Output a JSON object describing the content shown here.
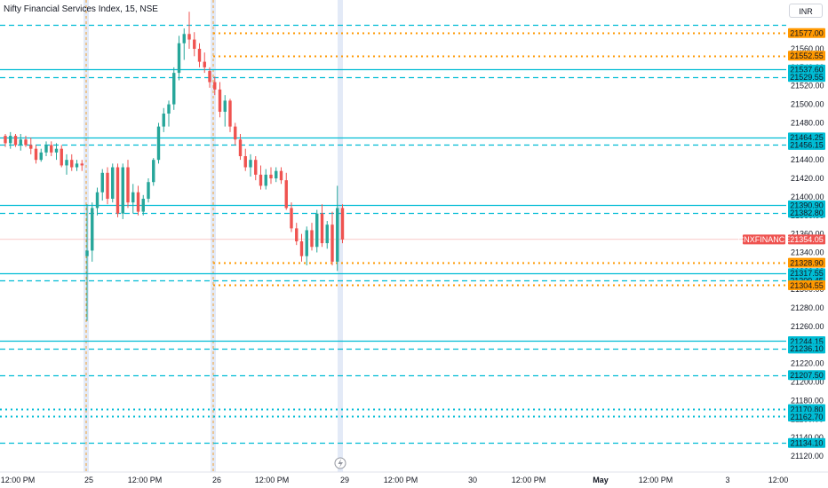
{
  "header": {
    "title": "Nifty Financial Services Index, 15, NSE",
    "currency": "INR"
  },
  "colors": {
    "up": "#26a69a",
    "down": "#ef5350",
    "cyan_line": "#00bcd4",
    "orange_line": "#ff9800",
    "current_price": "#ef5350",
    "session_band": "#e3eaf7",
    "session_line": "#2962ff"
  },
  "chart_data": {
    "type": "candlestick",
    "symbol": "CNXFINANCE",
    "current_price": 21354.05,
    "price_axis": {
      "min": 21120,
      "max": 21580,
      "ticks": [
        21560,
        21540,
        21520,
        21500,
        21480,
        21460,
        21440,
        21420,
        21400,
        21380,
        21360,
        21340,
        21320,
        21300,
        21280,
        21260,
        21240,
        21220,
        21200,
        21180,
        21160,
        21140,
        21120
      ]
    },
    "time_axis": {
      "labels": [
        "12:00 PM",
        "25",
        "12:00 PM",
        "26",
        "12:00 PM",
        "29",
        "12:00 PM",
        "30",
        "12:00 PM",
        "May",
        "12:00 PM",
        "3",
        "12:00"
      ]
    },
    "session_markers": [
      {
        "label": "25"
      },
      {
        "label": "26"
      },
      {
        "label": "29"
      }
    ],
    "levels": [
      {
        "value": 21577.0,
        "label": "21577.00",
        "style": "dotted",
        "color": "orange"
      },
      {
        "value": 21552.55,
        "label": "21552.55",
        "style": "dotted",
        "color": "orange"
      },
      {
        "value": 21537.6,
        "label": "21537.60",
        "style": "solid",
        "color": "cyan"
      },
      {
        "value": 21529.55,
        "label": "21529.55",
        "style": "dashed",
        "color": "cyan"
      },
      {
        "value": 21464.25,
        "label": "21464.25",
        "style": "solid",
        "color": "cyan"
      },
      {
        "value": 21456.15,
        "label": "21456.15",
        "style": "dashed",
        "color": "cyan"
      },
      {
        "value": 21390.9,
        "label": "21390.90",
        "style": "solid",
        "color": "cyan"
      },
      {
        "value": 21382.8,
        "label": "21382.80",
        "style": "dashed",
        "color": "cyan"
      },
      {
        "value": 21328.9,
        "label": "21328.90",
        "style": "dotted",
        "color": "orange"
      },
      {
        "value": 21317.55,
        "label": "21317.55",
        "style": "solid",
        "color": "cyan"
      },
      {
        "value": 21309.45,
        "label": "21309.45",
        "style": "dashed",
        "color": "cyan"
      },
      {
        "value": 21304.55,
        "label": "21304.55",
        "style": "dotted",
        "color": "orange"
      },
      {
        "value": 21244.15,
        "label": "21244.15",
        "style": "solid",
        "color": "cyan"
      },
      {
        "value": 21236.1,
        "label": "21236.10",
        "style": "dashed",
        "color": "cyan"
      },
      {
        "value": 21207.5,
        "label": "21207.50",
        "style": "dashed",
        "color": "cyan"
      },
      {
        "value": 21170.8,
        "label": "21170.80",
        "style": "dotted",
        "color": "cyan"
      },
      {
        "value": 21162.7,
        "label": "21162.70",
        "style": "dotted",
        "color": "cyan"
      },
      {
        "value": 21134.1,
        "label": "21134.10",
        "style": "dashed",
        "color": "cyan"
      },
      {
        "value": 21586.0,
        "label": "",
        "style": "dashed",
        "color": "cyan"
      }
    ],
    "candles": [
      [
        21466,
        21468,
        21454,
        21458
      ],
      [
        21458,
        21470,
        21452,
        21466
      ],
      [
        21466,
        21468,
        21454,
        21456
      ],
      [
        21456,
        21468,
        21450,
        21462
      ],
      [
        21462,
        21466,
        21454,
        21456
      ],
      [
        21456,
        21464,
        21446,
        21452
      ],
      [
        21452,
        21456,
        21436,
        21440
      ],
      [
        21440,
        21452,
        21438,
        21448
      ],
      [
        21448,
        21460,
        21444,
        21456
      ],
      [
        21456,
        21460,
        21444,
        21448
      ],
      [
        21448,
        21458,
        21440,
        21452
      ],
      [
        21452,
        21456,
        21432,
        21434
      ],
      [
        21434,
        21446,
        21424,
        21440
      ],
      [
        21440,
        21446,
        21428,
        21432
      ],
      [
        21432,
        21440,
        21428,
        21436
      ],
      [
        21436,
        21440,
        21428,
        21434
      ],
      [
        21336,
        21392,
        21266,
        21342
      ],
      [
        21342,
        21394,
        21330,
        21388
      ],
      [
        21388,
        21410,
        21380,
        21405
      ],
      [
        21405,
        21430,
        21396,
        21426
      ],
      [
        21426,
        21432,
        21392,
        21398
      ],
      [
        21398,
        21436,
        21394,
        21432
      ],
      [
        21432,
        21436,
        21378,
        21382
      ],
      [
        21382,
        21436,
        21376,
        21432
      ],
      [
        21432,
        21440,
        21388,
        21394
      ],
      [
        21394,
        21414,
        21382,
        21405
      ],
      [
        21405,
        21412,
        21380,
        21384
      ],
      [
        21384,
        21402,
        21380,
        21398
      ],
      [
        21398,
        21420,
        21394,
        21416
      ],
      [
        21416,
        21442,
        21412,
        21440
      ],
      [
        21440,
        21480,
        21436,
        21476
      ],
      [
        21476,
        21496,
        21470,
        21490
      ],
      [
        21490,
        21504,
        21476,
        21500
      ],
      [
        21500,
        21540,
        21494,
        21534
      ],
      [
        21534,
        21574,
        21526,
        21566
      ],
      [
        21566,
        21582,
        21548,
        21576
      ],
      [
        21576,
        21600,
        21560,
        21570
      ],
      [
        21570,
        21578,
        21552,
        21560
      ],
      [
        21560,
        21566,
        21540,
        21546
      ],
      [
        21546,
        21556,
        21534,
        21540
      ],
      [
        21536,
        21540,
        21518,
        21524
      ],
      [
        21524,
        21530,
        21510,
        21516
      ],
      [
        21516,
        21524,
        21486,
        21492
      ],
      [
        21492,
        21510,
        21476,
        21504
      ],
      [
        21504,
        21506,
        21470,
        21476
      ],
      [
        21476,
        21480,
        21456,
        21462
      ],
      [
        21462,
        21468,
        21440,
        21444
      ],
      [
        21444,
        21452,
        21428,
        21432
      ],
      [
        21432,
        21446,
        21422,
        21440
      ],
      [
        21440,
        21444,
        21418,
        21424
      ],
      [
        21424,
        21434,
        21408,
        21412
      ],
      [
        21412,
        21430,
        21408,
        21424
      ],
      [
        21424,
        21432,
        21414,
        21420
      ],
      [
        21420,
        21432,
        21416,
        21428
      ],
      [
        21428,
        21432,
        21414,
        21418
      ],
      [
        21418,
        21426,
        21386,
        21388
      ],
      [
        21388,
        21394,
        21362,
        21366
      ],
      [
        21366,
        21372,
        21348,
        21352
      ],
      [
        21352,
        21360,
        21330,
        21336
      ],
      [
        21336,
        21368,
        21326,
        21364
      ],
      [
        21364,
        21372,
        21342,
        21346
      ],
      [
        21346,
        21386,
        21340,
        21382
      ],
      [
        21382,
        21392,
        21346,
        21350
      ],
      [
        21350,
        21374,
        21344,
        21370
      ],
      [
        21370,
        21384,
        21326,
        21330
      ],
      [
        21330,
        21412,
        21320,
        21388
      ],
      [
        21388,
        21392,
        21350,
        21354
      ]
    ]
  }
}
